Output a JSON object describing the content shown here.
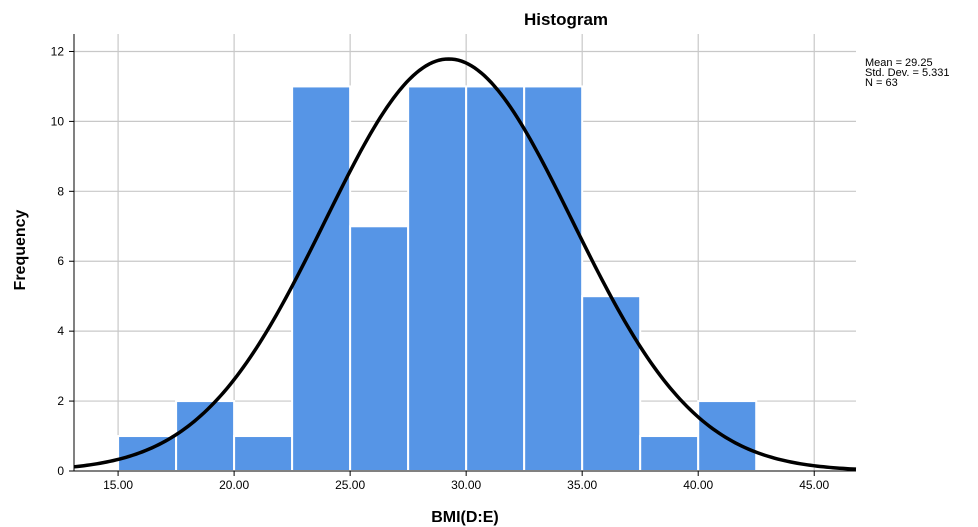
{
  "chart_data": {
    "type": "bar",
    "subtype": "histogram",
    "title": "Histogram",
    "xlabel": "BMI(D:E)",
    "ylabel": "Frequency",
    "bin_width": 2.5,
    "bins": [
      {
        "start": 15.0,
        "end": 17.5,
        "count": 1
      },
      {
        "start": 17.5,
        "end": 20.0,
        "count": 2
      },
      {
        "start": 20.0,
        "end": 22.5,
        "count": 1
      },
      {
        "start": 22.5,
        "end": 25.0,
        "count": 11
      },
      {
        "start": 25.0,
        "end": 27.5,
        "count": 7
      },
      {
        "start": 27.5,
        "end": 30.0,
        "count": 11
      },
      {
        "start": 30.0,
        "end": 32.5,
        "count": 11
      },
      {
        "start": 32.5,
        "end": 35.0,
        "count": 11
      },
      {
        "start": 35.0,
        "end": 37.5,
        "count": 5
      },
      {
        "start": 37.5,
        "end": 40.0,
        "count": 1
      },
      {
        "start": 40.0,
        "end": 42.5,
        "count": 2
      }
    ],
    "xticks": [
      "15.00",
      "20.00",
      "25.00",
      "30.00",
      "35.00",
      "40.00",
      "45.00"
    ],
    "yticks": [
      "0",
      "2",
      "4",
      "6",
      "8",
      "10",
      "12"
    ],
    "xlim": [
      13.1,
      46.8
    ],
    "ylim": [
      0,
      12.5
    ],
    "grid": true,
    "normal_curve": {
      "mean": 29.25,
      "std": 5.331,
      "n": 63
    },
    "stats_box": {
      "position": "top-right",
      "lines": [
        "Mean = 29.25",
        "Std. Dev. = 5.331",
        "N = 63"
      ]
    },
    "colors": {
      "bar": "#5695e6",
      "curve": "#000000",
      "grid": "#c8c8c8"
    }
  }
}
